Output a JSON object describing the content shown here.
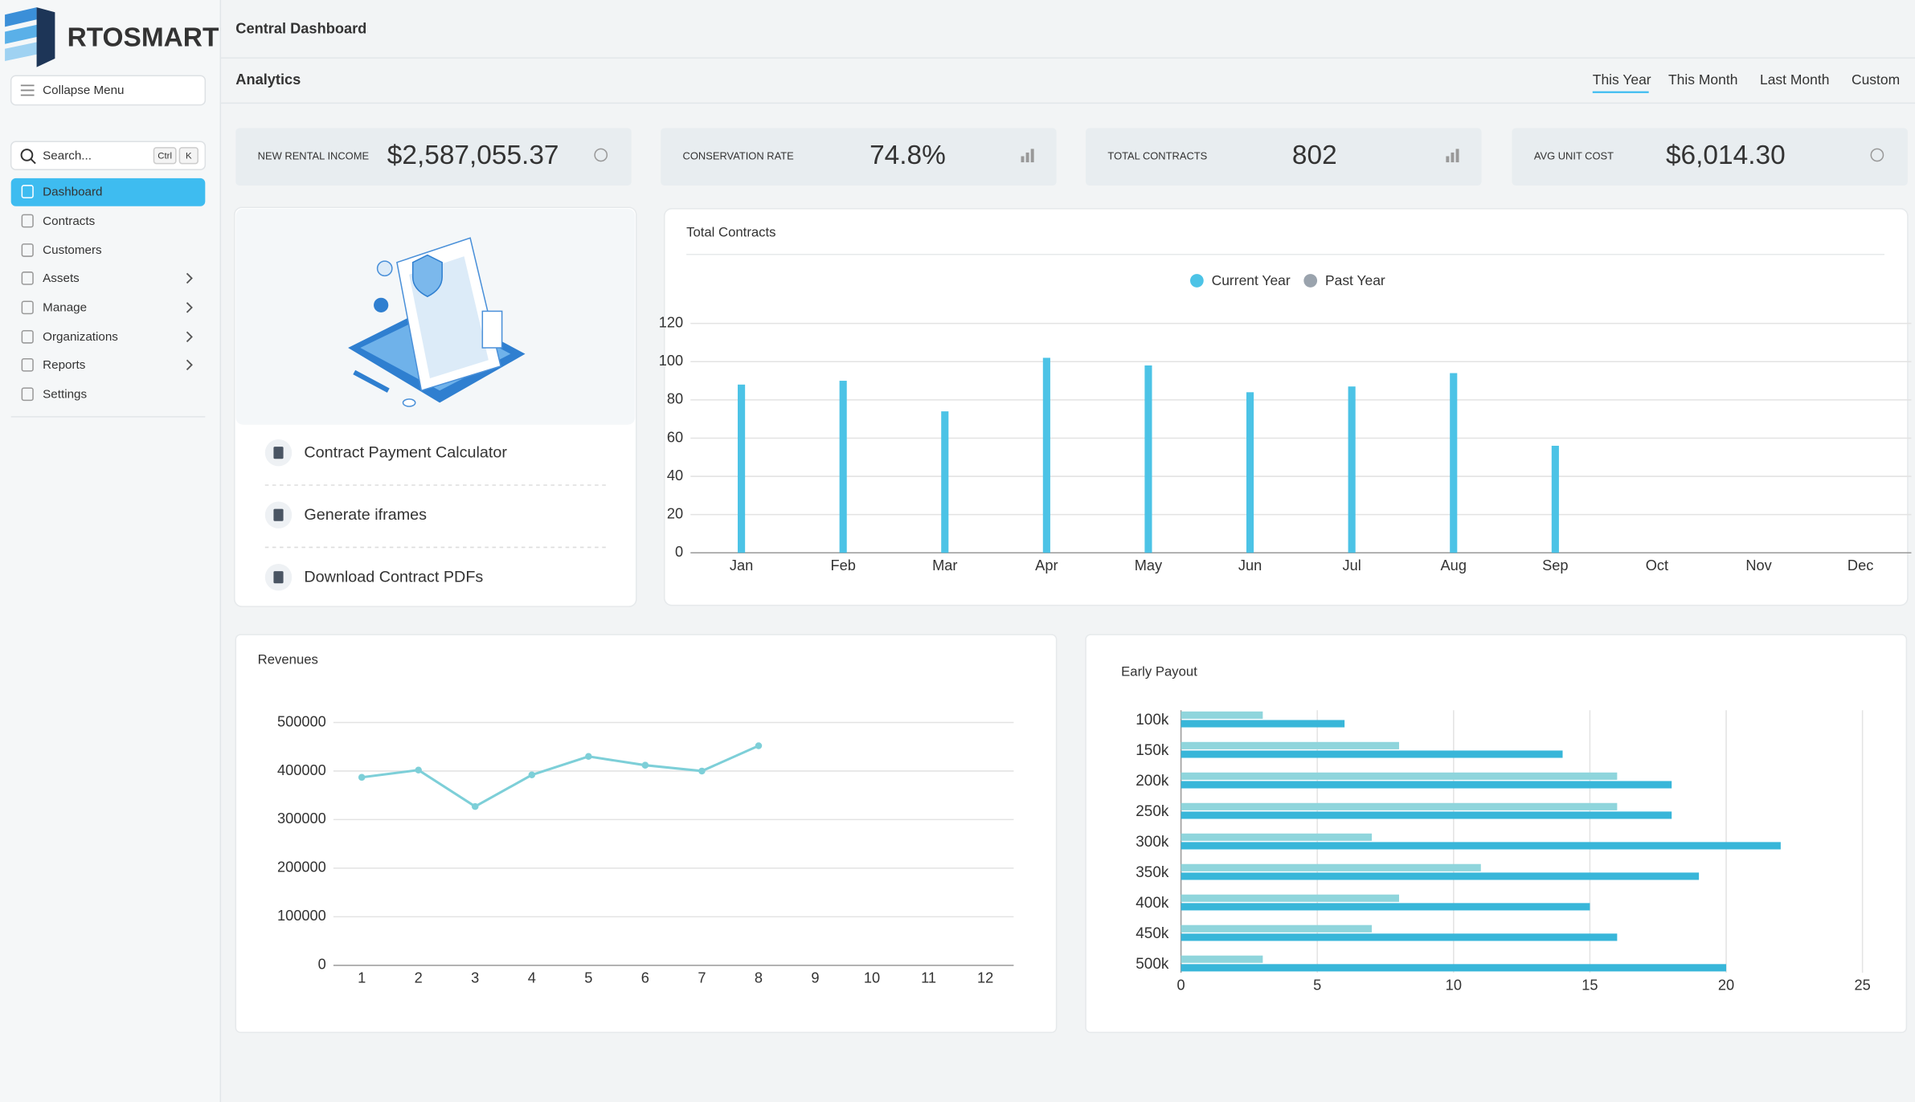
{
  "brand": "RTOSMART",
  "sidebar": {
    "collapse": "Collapse Menu",
    "search": "Search...",
    "shortcut": [
      "Ctrl",
      "K"
    ],
    "menu": [
      "Dashboard",
      "Contracts",
      "Customers",
      "Assets",
      "Manage",
      "Organizations",
      "Reports",
      "Settings"
    ]
  },
  "header": {
    "title": "Central Dashboard",
    "section": "Analytics",
    "ranges": [
      "This Year",
      "This Month",
      "Last Month",
      "Custom"
    ]
  },
  "kpis": [
    {
      "label": "NEW RENTAL INCOME",
      "value": "$2,587,055.37"
    },
    {
      "label": "CONSERVATION RATE",
      "value": "74.8%"
    },
    {
      "label": "TOTAL CONTRACTS",
      "value": "802"
    },
    {
      "label": "AVG UNIT COST",
      "value": "$6,014.30"
    }
  ],
  "tools": [
    "Contract Payment Calculator",
    "Generate iframes",
    "Download Contract PDFs"
  ],
  "charts": [
    {
      "type": "bar",
      "title": "Total Contracts",
      "categories": [
        "Jan",
        "Feb",
        "Mar",
        "Apr",
        "May",
        "Jun",
        "Jul",
        "Aug",
        "Sep",
        "Oct",
        "Nov",
        "Dec"
      ],
      "series": [
        {
          "name": "Current Year",
          "color": "#4cc3e6",
          "values": [
            88,
            90,
            74,
            102,
            98,
            84,
            87,
            94,
            56,
            null,
            null,
            null
          ]
        },
        {
          "name": "Past Year",
          "color": "#9aa3ad",
          "values": [
            null,
            null,
            null,
            null,
            null,
            null,
            null,
            null,
            null,
            null,
            null,
            null
          ]
        }
      ],
      "ylim": [
        0,
        120
      ],
      "yticks": [
        0,
        20,
        40,
        60,
        80,
        100,
        120
      ],
      "grid": true,
      "legend": "top"
    },
    {
      "type": "line",
      "title": "Revenues",
      "categories": [
        "1",
        "2",
        "3",
        "4",
        "5",
        "6",
        "7",
        "8",
        "9",
        "10",
        "11",
        "12"
      ],
      "values": [
        387000,
        402000,
        327000,
        392000,
        430000,
        412000,
        400000,
        452000,
        null,
        null,
        null,
        null
      ],
      "color": "#7dcfd8",
      "ylim": [
        0,
        500000
      ],
      "yticks": [
        0,
        100000,
        200000,
        300000,
        400000,
        500000
      ],
      "grid": true
    },
    {
      "type": "bar",
      "orientation": "horizontal",
      "title": "Early Payout",
      "categories": [
        "100k",
        "150k",
        "200k",
        "250k",
        "300k",
        "350k",
        "400k",
        "450k",
        "500k"
      ],
      "series": [
        {
          "color": "#8fd5dc",
          "values": [
            3,
            8,
            16,
            16,
            7,
            11,
            8,
            7,
            3
          ]
        },
        {
          "color": "#38b6d9",
          "values": [
            6,
            14,
            18,
            18,
            22,
            19,
            15,
            16,
            20
          ]
        }
      ],
      "xlim": [
        0,
        25
      ],
      "xticks": [
        0,
        5,
        10,
        15,
        20,
        25
      ],
      "grid": true
    }
  ]
}
